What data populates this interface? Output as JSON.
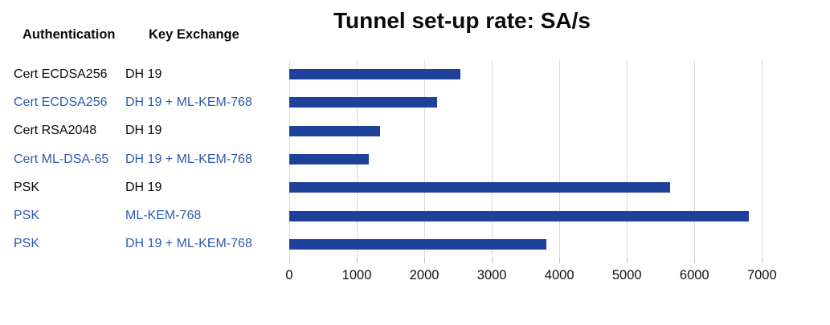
{
  "title": "Tunnel set-up rate: SA/s",
  "table": {
    "headers": [
      "Authentication",
      "Key Exchange"
    ]
  },
  "colors": {
    "bar": "#1e4199",
    "highlight_text": "#2e5cad",
    "normal_text": "#0b0b0b",
    "gridline": "#d9d9d9"
  },
  "chart_data": {
    "type": "bar",
    "orientation": "horizontal",
    "title": "Tunnel set-up rate: SA/s",
    "xlabel": "",
    "ylabel": "",
    "xlim": [
      0,
      7000
    ],
    "x_ticks": [
      0,
      1000,
      2000,
      3000,
      4000,
      5000,
      6000,
      7000
    ],
    "grid": true,
    "legend": "none",
    "rows": [
      {
        "authentication": "Cert ECDSA256",
        "key_exchange": "DH 19",
        "value": 2530,
        "highlight": false
      },
      {
        "authentication": "Cert ECDSA256",
        "key_exchange": "DH 19 + ML-KEM-768",
        "value": 2190,
        "highlight": true
      },
      {
        "authentication": "Cert RSA2048",
        "key_exchange": "DH 19",
        "value": 1350,
        "highlight": false
      },
      {
        "authentication": "Cert ML-DSA-65",
        "key_exchange": "DH 19 + ML-KEM-768",
        "value": 1180,
        "highlight": true
      },
      {
        "authentication": "PSK",
        "key_exchange": "DH 19",
        "value": 5640,
        "highlight": false
      },
      {
        "authentication": "PSK",
        "key_exchange": "ML-KEM-768",
        "value": 6810,
        "highlight": true
      },
      {
        "authentication": "PSK",
        "key_exchange": "DH 19 + ML-KEM-768",
        "value": 3810,
        "highlight": true
      }
    ]
  }
}
